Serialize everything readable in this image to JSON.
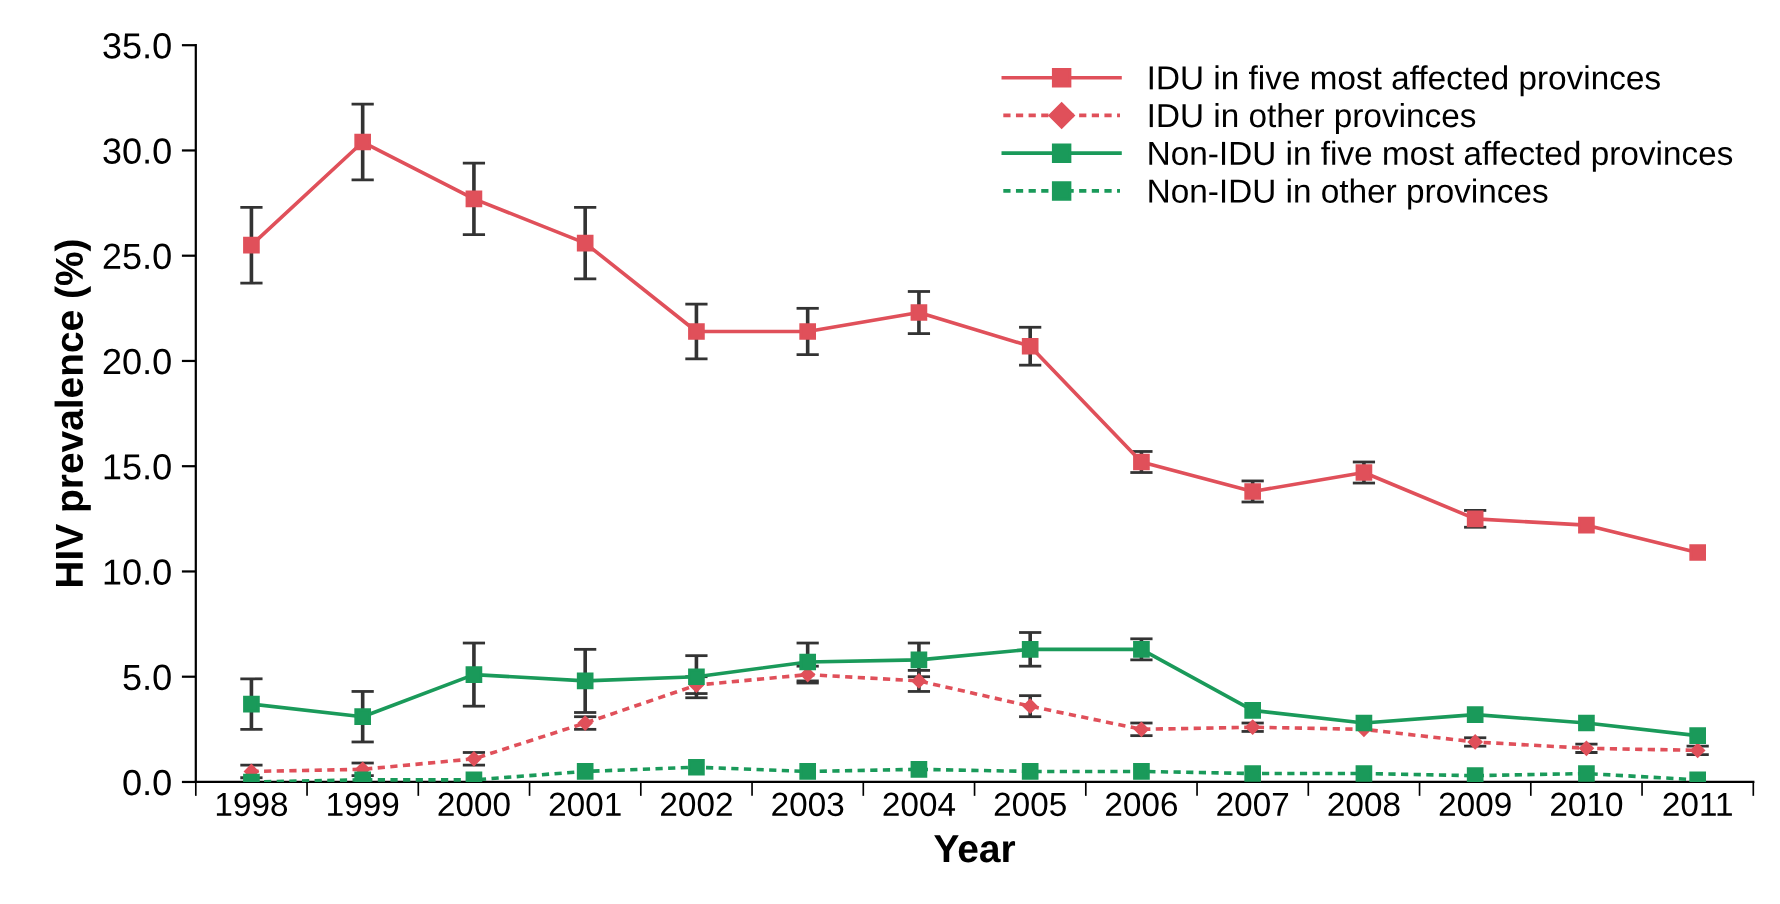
{
  "chart_data": {
    "type": "line",
    "xlabel": "Year",
    "ylabel": "HIV prevalence (%)",
    "categories": [
      "1998",
      "1999",
      "2000",
      "2001",
      "2002",
      "2003",
      "2004",
      "2005",
      "2006",
      "2007",
      "2008",
      "2009",
      "2010",
      "2011"
    ],
    "ylim": [
      0,
      35
    ],
    "yticks": [
      {
        "value": 0,
        "label": "0.0"
      },
      {
        "value": 5,
        "label": "5.0"
      },
      {
        "value": 10,
        "label": "10.0"
      },
      {
        "value": 15,
        "label": "15.0"
      },
      {
        "value": 20,
        "label": "20.0"
      },
      {
        "value": 25,
        "label": "25.0"
      },
      {
        "value": 30,
        "label": "30.0"
      },
      {
        "value": 35,
        "label": "35.0"
      }
    ],
    "grid": false,
    "legend": "top right",
    "series": [
      {
        "name": "IDU in five most affected provinces",
        "color": "#e0505a",
        "marker": "square",
        "line_style": "solid",
        "values": [
          25.5,
          30.4,
          27.7,
          25.6,
          21.4,
          21.4,
          22.3,
          20.7,
          15.2,
          13.8,
          14.7,
          12.5,
          12.2,
          10.9
        ],
        "errors": [
          1.8,
          1.8,
          1.7,
          1.7,
          1.3,
          1.1,
          1.0,
          0.9,
          0.5,
          0.5,
          0.5,
          0.4,
          null,
          null
        ]
      },
      {
        "name": "IDU in other provinces",
        "color": "#e0505a",
        "marker": "diamond",
        "line_style": "dotted",
        "values": [
          0.5,
          0.6,
          1.1,
          2.8,
          4.6,
          5.1,
          4.8,
          3.6,
          2.5,
          2.6,
          2.5,
          1.9,
          1.6,
          1.5
        ],
        "errors": [
          0.3,
          0.3,
          0.3,
          0.3,
          0.4,
          0.4,
          0.5,
          0.5,
          0.3,
          0.2,
          null,
          0.2,
          0.2,
          0.2
        ]
      },
      {
        "name": "Non-IDU in five most affected provinces",
        "color": "#1a9a5a",
        "marker": "square",
        "line_style": "solid",
        "values": [
          3.7,
          3.1,
          5.1,
          4.8,
          5.0,
          5.7,
          5.8,
          6.3,
          6.3,
          3.4,
          2.8,
          3.2,
          2.8,
          2.2
        ],
        "errors": [
          1.2,
          1.2,
          1.5,
          1.5,
          1.0,
          0.9,
          0.8,
          0.8,
          0.5,
          null,
          null,
          null,
          null,
          null
        ]
      },
      {
        "name": "Non-IDU in other provinces",
        "color": "#1a9a5a",
        "marker": "square",
        "line_style": "dotted",
        "values": [
          0.0,
          0.1,
          0.1,
          0.5,
          0.7,
          0.5,
          0.6,
          0.5,
          0.5,
          0.4,
          0.4,
          0.3,
          0.4,
          0.1
        ]
      }
    ]
  }
}
